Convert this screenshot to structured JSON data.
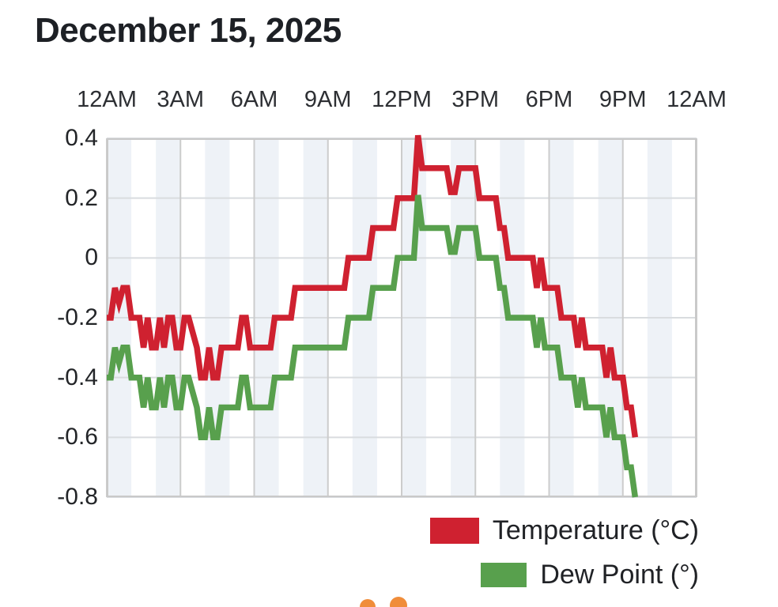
{
  "title": "December 15, 2025",
  "chart_data": {
    "type": "line",
    "title": "December 15, 2025",
    "x_axis": {
      "position": "top",
      "labels": [
        "12AM",
        "3AM",
        "6AM",
        "9AM",
        "12PM",
        "3PM",
        "6PM",
        "9PM",
        "12AM"
      ],
      "hours_span": 24,
      "gridline_every_hours": 3,
      "stripe_every_hours": 1
    },
    "y_axis": {
      "tick_labels": [
        "0.4",
        "0.2",
        "0",
        "-0.2",
        "-0.4",
        "-0.6",
        "-0.8"
      ],
      "tick_values": [
        0.4,
        0.2,
        0,
        -0.2,
        -0.4,
        -0.6,
        -0.8
      ],
      "ylim": [
        -0.8,
        0.4
      ]
    },
    "sample_start": "00:00",
    "sample_interval_minutes": 10,
    "series": [
      {
        "name": "Temperature (°C)",
        "color": "#cf2130",
        "values": [
          -0.2,
          -0.2,
          -0.1,
          -0.15,
          -0.1,
          -0.1,
          -0.2,
          -0.2,
          -0.2,
          -0.3,
          -0.2,
          -0.3,
          -0.3,
          -0.2,
          -0.3,
          -0.2,
          -0.2,
          -0.3,
          -0.3,
          -0.2,
          -0.2,
          -0.25,
          -0.3,
          -0.4,
          -0.4,
          -0.3,
          -0.4,
          -0.4,
          -0.3,
          -0.3,
          -0.3,
          -0.3,
          -0.3,
          -0.2,
          -0.2,
          -0.3,
          -0.3,
          -0.3,
          -0.3,
          -0.3,
          -0.3,
          -0.2,
          -0.2,
          -0.2,
          -0.2,
          -0.2,
          -0.1,
          -0.1,
          -0.1,
          -0.1,
          -0.1,
          -0.1,
          -0.1,
          -0.1,
          -0.1,
          -0.1,
          -0.1,
          -0.1,
          -0.1,
          0,
          0,
          0,
          0,
          0,
          0,
          0.1,
          0.1,
          0.1,
          0.1,
          0.1,
          0.1,
          0.2,
          0.2,
          0.2,
          0.2,
          0.2,
          0.41,
          0.3,
          0.3,
          0.3,
          0.3,
          0.3,
          0.3,
          0.3,
          0.22,
          0.22,
          0.3,
          0.3,
          0.3,
          0.3,
          0.3,
          0.2,
          0.2,
          0.2,
          0.2,
          0.2,
          0.1,
          0.1,
          0,
          0,
          0,
          0,
          0,
          0,
          0,
          -0.1,
          0,
          -0.1,
          -0.1,
          -0.1,
          -0.1,
          -0.2,
          -0.2,
          -0.2,
          -0.2,
          -0.3,
          -0.2,
          -0.3,
          -0.3,
          -0.3,
          -0.3,
          -0.3,
          -0.4,
          -0.3,
          -0.4,
          -0.4,
          -0.4,
          -0.5,
          -0.5,
          -0.6
        ]
      },
      {
        "name": "Dew Point (°)",
        "color": "#58a04d",
        "values": [
          -0.4,
          -0.4,
          -0.3,
          -0.35,
          -0.3,
          -0.3,
          -0.4,
          -0.4,
          -0.4,
          -0.5,
          -0.4,
          -0.5,
          -0.5,
          -0.4,
          -0.5,
          -0.4,
          -0.4,
          -0.5,
          -0.5,
          -0.4,
          -0.4,
          -0.45,
          -0.5,
          -0.6,
          -0.6,
          -0.5,
          -0.6,
          -0.6,
          -0.5,
          -0.5,
          -0.5,
          -0.5,
          -0.5,
          -0.4,
          -0.4,
          -0.5,
          -0.5,
          -0.5,
          -0.5,
          -0.5,
          -0.5,
          -0.4,
          -0.4,
          -0.4,
          -0.4,
          -0.4,
          -0.3,
          -0.3,
          -0.3,
          -0.3,
          -0.3,
          -0.3,
          -0.3,
          -0.3,
          -0.3,
          -0.3,
          -0.3,
          -0.3,
          -0.3,
          -0.2,
          -0.2,
          -0.2,
          -0.2,
          -0.2,
          -0.2,
          -0.1,
          -0.1,
          -0.1,
          -0.1,
          -0.1,
          -0.1,
          0,
          0,
          0,
          0,
          0,
          0.21,
          0.1,
          0.1,
          0.1,
          0.1,
          0.1,
          0.1,
          0.1,
          0.02,
          0.02,
          0.1,
          0.1,
          0.1,
          0.1,
          0.1,
          0,
          0,
          0,
          0,
          0,
          -0.1,
          -0.1,
          -0.2,
          -0.2,
          -0.2,
          -0.2,
          -0.2,
          -0.2,
          -0.2,
          -0.3,
          -0.2,
          -0.3,
          -0.3,
          -0.3,
          -0.3,
          -0.4,
          -0.4,
          -0.4,
          -0.4,
          -0.5,
          -0.4,
          -0.5,
          -0.5,
          -0.5,
          -0.5,
          -0.5,
          -0.6,
          -0.5,
          -0.6,
          -0.6,
          -0.6,
          -0.7,
          -0.7,
          -0.8
        ]
      }
    ],
    "grid_on": true,
    "legend_position": "bottom-right"
  },
  "style_colors": {
    "stripe": "#eef2f7",
    "vertical_grid": "#cccccc",
    "horizontal_grid": "#d9dcdf",
    "plot_border": "#c9c9c9",
    "temperature_line": "#cf2130",
    "dew_point_line": "#58a04d",
    "orange_dot": "#f08d3a"
  },
  "legend": {
    "items": [
      {
        "label": "Temperature (°C)",
        "swatch_color": "#cf2130",
        "swatch_icon": "red-swatch-icon"
      },
      {
        "label": "Dew Point (°)",
        "swatch_color": "#58a04d",
        "swatch_icon": "green-swatch-icon"
      }
    ]
  },
  "decorations": {
    "orange_dot_count": 2,
    "note": "two partially visible orange dots at bottom edge"
  }
}
